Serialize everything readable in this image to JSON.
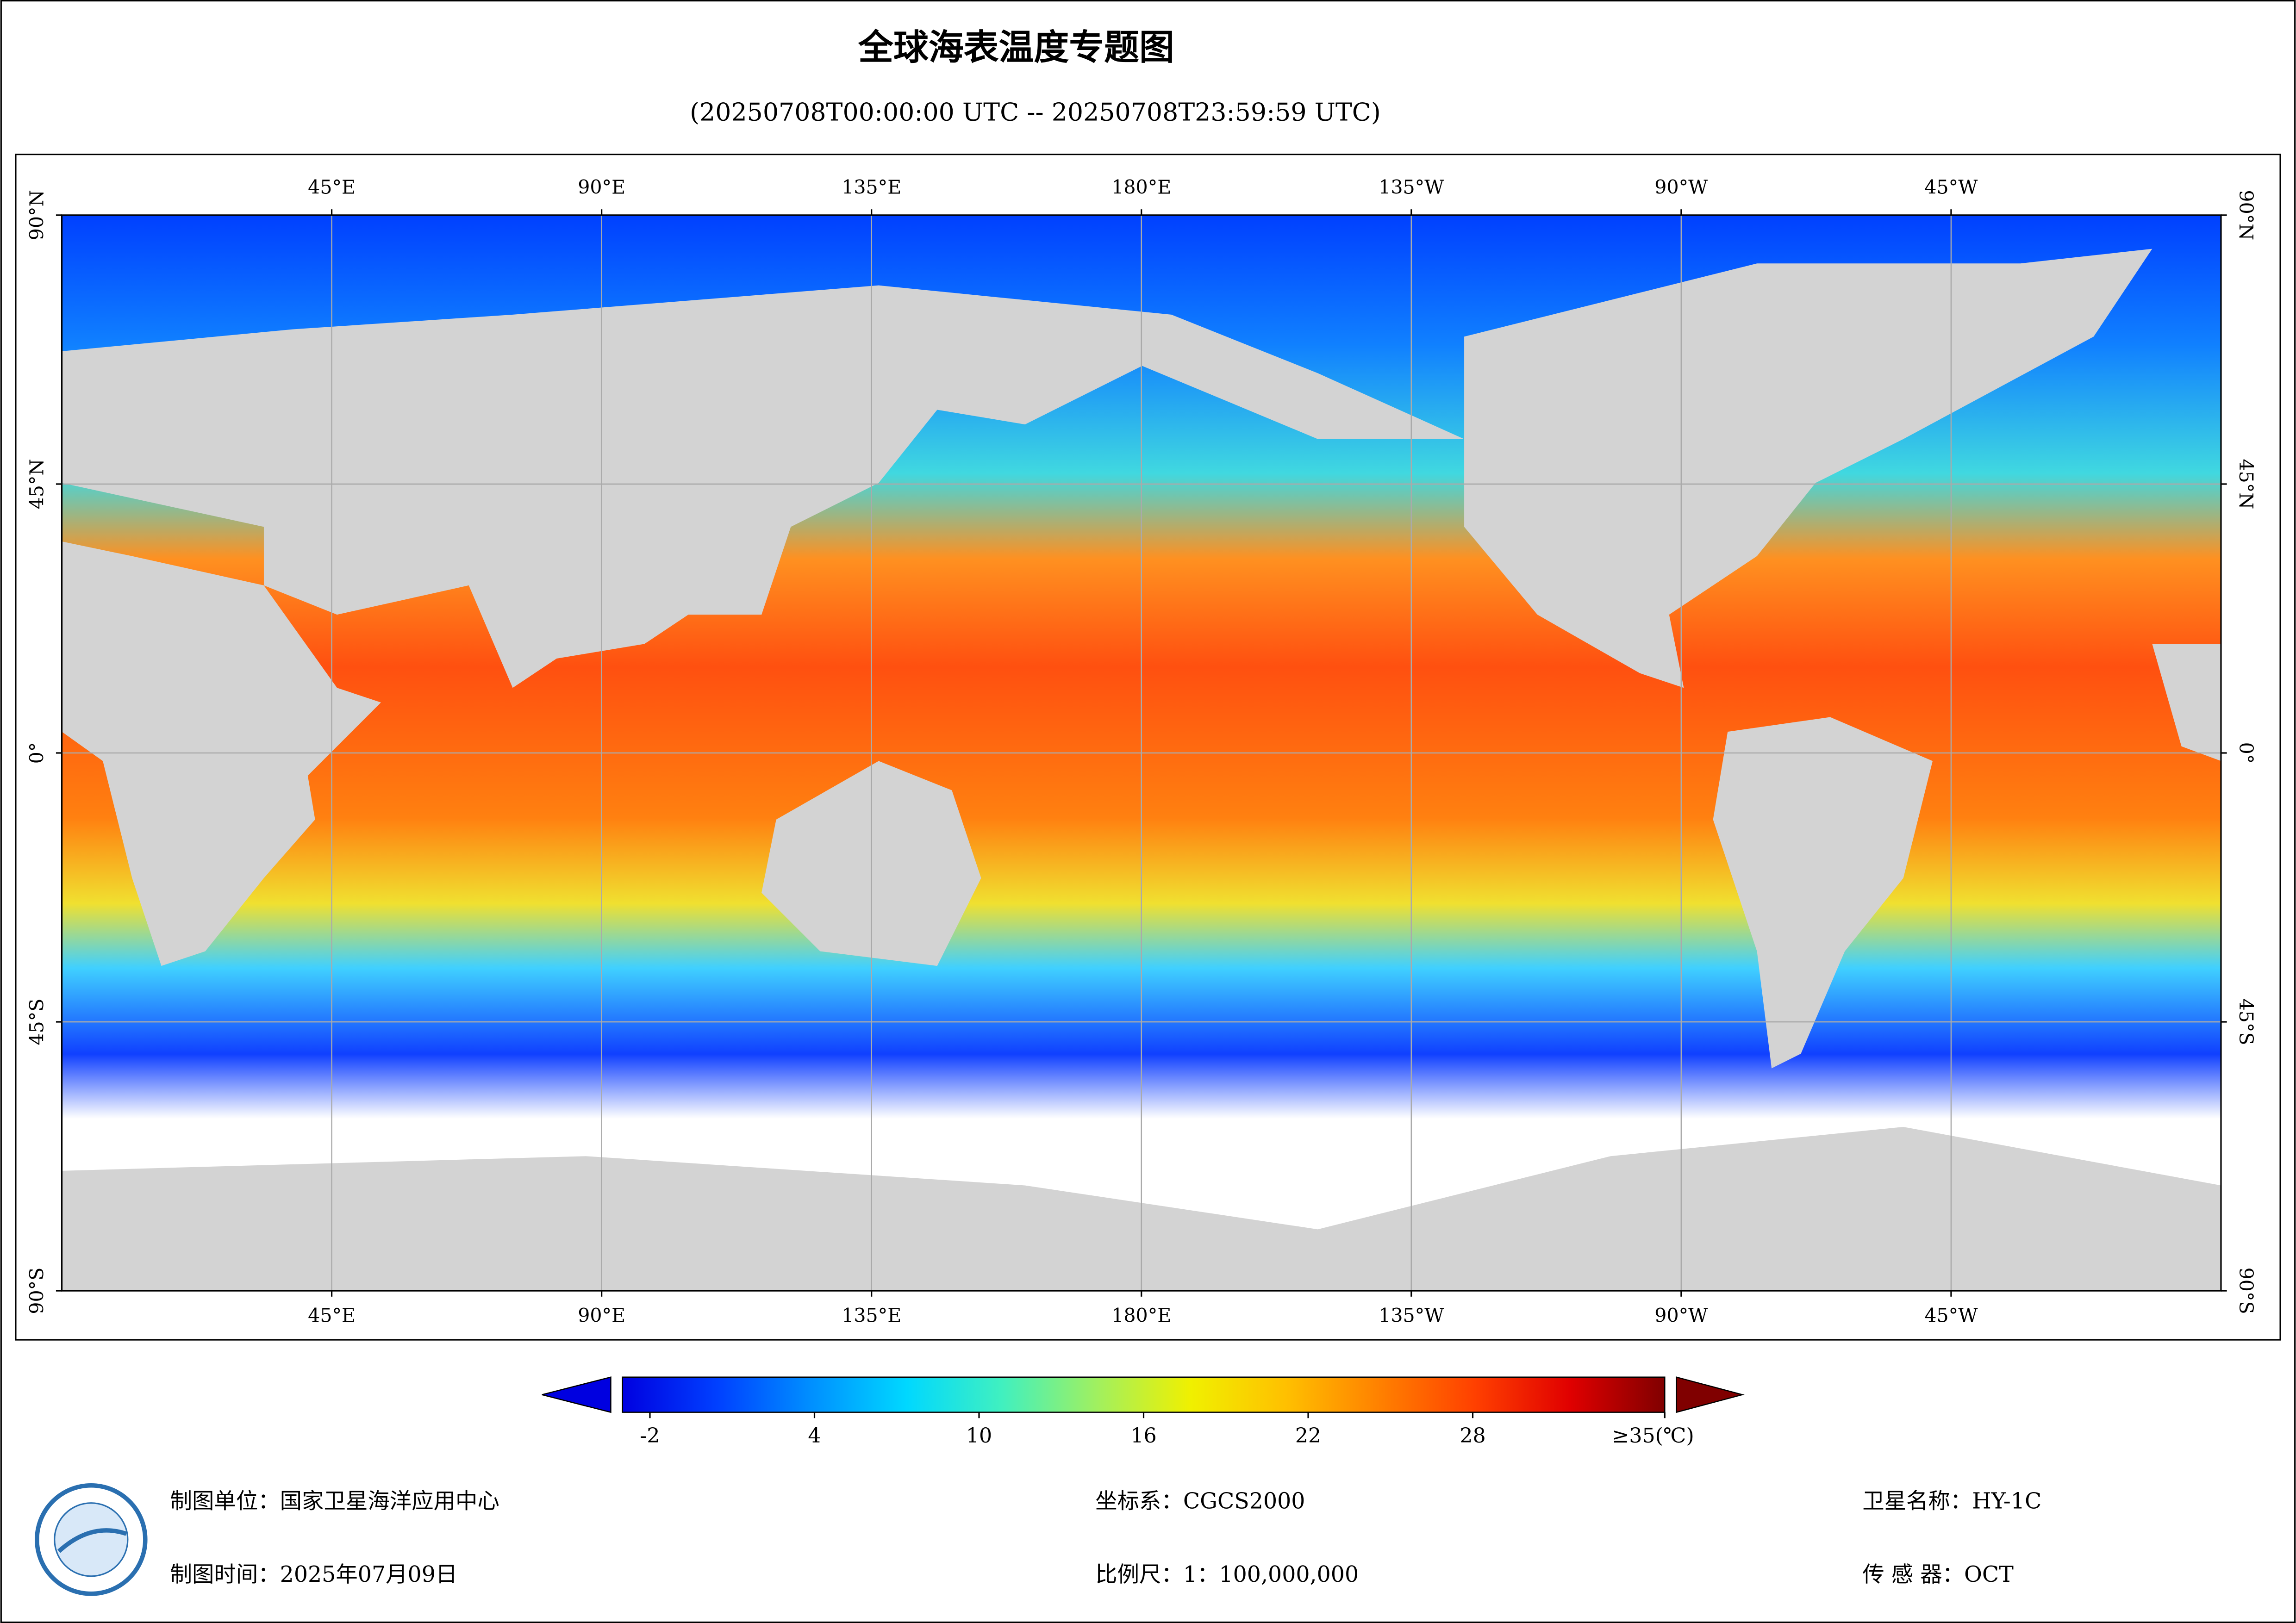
{
  "header": {
    "title": "全球海表温度专题图",
    "subtitle": "(20250708T00:00:00 UTC -- 20250708T23:59:59 UTC)"
  },
  "map": {
    "lon_lim": [
      0,
      360
    ],
    "lat_lim": [
      -90,
      90
    ],
    "lon_ticks": [
      {
        "value": 45,
        "label": "45°E"
      },
      {
        "value": 90,
        "label": "90°E"
      },
      {
        "value": 135,
        "label": "135°E"
      },
      {
        "value": 180,
        "label": "180°E"
      },
      {
        "value": 225,
        "label": "135°W"
      },
      {
        "value": 270,
        "label": "90°W"
      },
      {
        "value": 315,
        "label": "45°W"
      }
    ],
    "lat_ticks": [
      {
        "value": 90,
        "label": "90°N"
      },
      {
        "value": 45,
        "label": "45°N"
      },
      {
        "value": 0,
        "label": "0°"
      },
      {
        "value": -45,
        "label": "45°S"
      },
      {
        "value": -90,
        "label": "90°S"
      }
    ],
    "grid": true
  },
  "colorbar": {
    "lim": [
      -3,
      35
    ],
    "ticks": [
      -2,
      4,
      10,
      16,
      22,
      28,
      {
        "value": 35,
        "label": "≥35(℃)"
      }
    ],
    "colors": [
      "#0000e0",
      "#0040ff",
      "#0090ff",
      "#00d8ff",
      "#40f0c0",
      "#a0f060",
      "#f0f000",
      "#ffc000",
      "#ff8000",
      "#ff4000",
      "#e00000",
      "#800000"
    ],
    "under_color": "#0000e0",
    "over_color": "#800000"
  },
  "footer": {
    "unit": "制图单位：国家卫星海洋应用中心",
    "date": "制图时间：2025年07月09日",
    "crs": "坐标系：CGCS2000",
    "scale": "比例尺：1：100,000,000",
    "satellite": "卫星名称：HY-1C",
    "sensor": "传 感 器：OCT"
  }
}
